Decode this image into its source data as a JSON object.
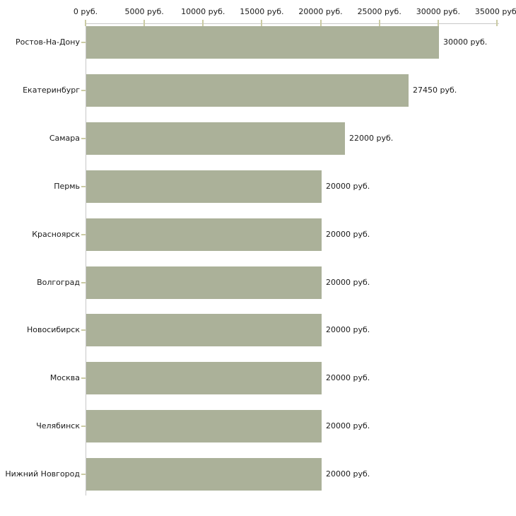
{
  "chart_data": {
    "type": "bar",
    "orientation": "horizontal",
    "title": "",
    "xlabel": "",
    "ylabel": "",
    "unit": "руб.",
    "xlim": [
      0,
      35000
    ],
    "grid": false,
    "legend": null,
    "categories": [
      "Ростов-На-Дону",
      "Екатеринбург",
      "Самара",
      "Пермь",
      "Красноярск",
      "Волгоград",
      "Новосибирск",
      "Москва",
      "Челябинск",
      "Нижний Новгород"
    ],
    "values": [
      30000,
      27450,
      22000,
      20000,
      20000,
      20000,
      20000,
      20000,
      20000,
      20000
    ],
    "bar_labels": [
      "30000 руб.",
      "27450 руб.",
      "22000 руб.",
      "20000 руб.",
      "20000 руб.",
      "20000 руб.",
      "20000 руб.",
      "20000 руб.",
      "20000 руб.",
      "20000 руб."
    ],
    "x_ticks": {
      "values": [
        0,
        5000,
        10000,
        15000,
        20000,
        25000,
        30000,
        35000
      ],
      "labels": [
        "0 руб.",
        "5000 руб.",
        "10000 руб.",
        "15000 руб.",
        "20000 руб.",
        "25000 руб.",
        "30000 руб.",
        "35000 руб."
      ]
    },
    "colors": {
      "bar": "#abb199",
      "axis_line": "#c8c8c8",
      "tick_mark": "#cbcba4",
      "text": "#1a1a1a",
      "background": "#ffffff"
    }
  }
}
